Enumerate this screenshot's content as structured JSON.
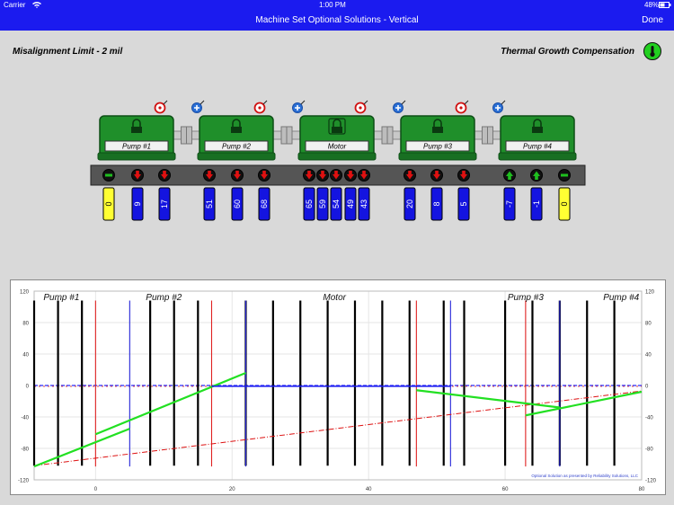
{
  "status_bar": {
    "carrier": "Carrier",
    "wifi_icon": "wifi-icon",
    "time": "1:00 PM",
    "battery": "48%",
    "battery_icon": "battery-icon"
  },
  "nav": {
    "title": "Machine Set Optional Solutions - Vertical",
    "done_label": "Done"
  },
  "header": {
    "misalignment_limit": "Misalignment Limit - 2 mil",
    "thermal_growth": "Thermal Growth Compensation",
    "thermal_icon": "thermometer-icon"
  },
  "machines": [
    {
      "name": "Pump #1",
      "lock_icon": "lock-icon"
    },
    {
      "name": "Pump #2",
      "lock_icon": "lock-icon"
    },
    {
      "name": "Motor",
      "lock_icon": "lock-icon"
    },
    {
      "name": "Pump #3",
      "lock_icon": "lock-icon"
    },
    {
      "name": "Pump #4",
      "lock_icon": "lock-icon"
    }
  ],
  "coupling_icons": [
    "target-icon",
    "plus-icon"
  ],
  "feet": [
    {
      "value": "0",
      "direction": "none",
      "highlight": true
    },
    {
      "value": "9",
      "direction": "down"
    },
    {
      "value": "17",
      "direction": "down"
    },
    {
      "value": "51",
      "direction": "down"
    },
    {
      "value": "60",
      "direction": "down"
    },
    {
      "value": "68",
      "direction": "down"
    },
    {
      "value": "65",
      "direction": "down"
    },
    {
      "value": "59",
      "direction": "down"
    },
    {
      "value": "54",
      "direction": "down"
    },
    {
      "value": "49",
      "direction": "down"
    },
    {
      "value": "43",
      "direction": "down"
    },
    {
      "value": "20",
      "direction": "down"
    },
    {
      "value": "8",
      "direction": "down"
    },
    {
      "value": "5",
      "direction": "down"
    },
    {
      "value": "-7",
      "direction": "up"
    },
    {
      "value": "-1",
      "direction": "up"
    },
    {
      "value": "0",
      "direction": "none",
      "highlight": true
    }
  ],
  "colors": {
    "nav": "#1b1bef",
    "machine": "#1f8f2a",
    "foot": "#1414e0",
    "arrow_down": "#e01010",
    "arrow_up": "#1fbf1f",
    "highlight": "#ffff33"
  },
  "chart_data": {
    "type": "line",
    "machine_labels": [
      "Pump #1",
      "Pump #2",
      "Motor",
      "Pump #3",
      "Pump #4"
    ],
    "xlim": [
      -9,
      80
    ],
    "ylim": [
      -120,
      120
    ],
    "x_ticks": [
      "0",
      "20",
      "40",
      "60",
      "80"
    ],
    "y_ticks": [
      "120",
      "80",
      "40",
      "0",
      "-40",
      "-80",
      "-120"
    ],
    "footer": "Optional Solution as presented by Reliability Solutions, LLC",
    "foot_lines_x": [
      -9,
      -5.5,
      -2,
      8,
      11.5,
      15,
      22,
      26,
      30,
      34,
      38,
      42,
      46,
      51,
      54,
      60,
      64,
      68,
      72,
      76
    ],
    "coupling_red_x": [
      0,
      17,
      47,
      63
    ],
    "coupling_blue_x": [
      5,
      22,
      52,
      68
    ],
    "series": [
      {
        "color": "#22e022",
        "points": [
          [
            -9,
            -103
          ],
          [
            5,
            -55
          ]
        ]
      },
      {
        "color": "#22e022",
        "points": [
          [
            0,
            -62
          ],
          [
            22,
            16
          ]
        ]
      },
      {
        "color": "#1b1bef",
        "points": [
          [
            17,
            -1
          ],
          [
            52,
            -1
          ]
        ]
      },
      {
        "color": "#22e022",
        "points": [
          [
            47,
            -6
          ],
          [
            68,
            -28
          ]
        ]
      },
      {
        "color": "#22e022",
        "points": [
          [
            63,
            -38
          ],
          [
            80,
            -8
          ]
        ]
      }
    ],
    "reference_line": {
      "color": "#dd1111",
      "points": [
        [
          -9,
          -102
        ],
        [
          80,
          -7
        ]
      ]
    },
    "zero_line_color": "#2b2bff"
  }
}
